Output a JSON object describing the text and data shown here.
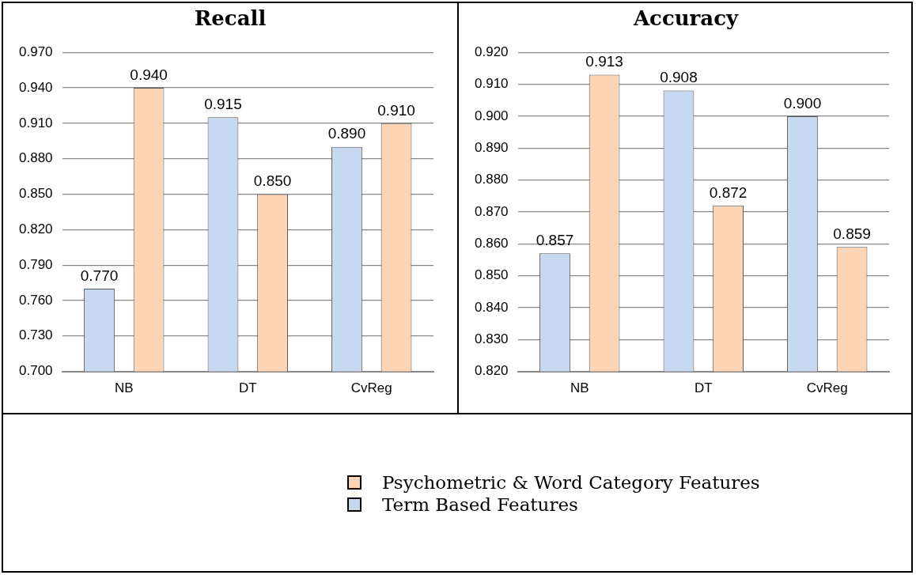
{
  "chart_data": [
    {
      "type": "bar",
      "title": "Recall",
      "categories": [
        "NB",
        "DT",
        "CvReg"
      ],
      "series": [
        {
          "name": "Term Based Features",
          "color": "#c6d9f0",
          "values": [
            0.77,
            0.915,
            0.89
          ],
          "value_labels": [
            "0.770",
            "0.915",
            "0.890"
          ]
        },
        {
          "name": "Psychometric & Word Category Features",
          "color": "#fbd5b5",
          "values": [
            0.94,
            0.85,
            0.91
          ],
          "value_labels": [
            "0.940",
            "0.850",
            "0.910"
          ]
        }
      ],
      "ylim": [
        0.7,
        0.97
      ],
      "yticks": [
        {
          "value": 0.7,
          "label": "0.700"
        },
        {
          "value": 0.73,
          "label": "0.730"
        },
        {
          "value": 0.76,
          "label": "0.760"
        },
        {
          "value": 0.79,
          "label": "0.790"
        },
        {
          "value": 0.82,
          "label": "0.820"
        },
        {
          "value": 0.85,
          "label": "0.850"
        },
        {
          "value": 0.88,
          "label": "0.880"
        },
        {
          "value": 0.91,
          "label": "0.910"
        },
        {
          "value": 0.94,
          "label": "0.940"
        },
        {
          "value": 0.97,
          "label": "0.970"
        }
      ],
      "grid": "y",
      "legend": "bottom"
    },
    {
      "type": "bar",
      "title": "Accuracy",
      "categories": [
        "NB",
        "DT",
        "CvReg"
      ],
      "series": [
        {
          "color": "#c6d9f0",
          "values": [
            0.857,
            0.908,
            0.9
          ],
          "value_labels": [
            "0.857",
            "0.908",
            "0.900"
          ]
        },
        {
          "color": "#fbd5b5",
          "values": [
            0.913,
            0.872,
            0.859
          ],
          "value_labels": [
            "0.913",
            "0.872",
            "0.859"
          ]
        }
      ],
      "ylim": [
        0.82,
        0.92
      ],
      "yticks": [
        {
          "value": 0.82,
          "label": "0.820"
        },
        {
          "value": 0.83,
          "label": "0.830"
        },
        {
          "value": 0.84,
          "label": "0.840"
        },
        {
          "value": 0.85,
          "label": "0.850"
        },
        {
          "value": 0.86,
          "label": "0.860"
        },
        {
          "value": 0.87,
          "label": "0.870"
        },
        {
          "value": 0.88,
          "label": "0.880"
        },
        {
          "value": 0.89,
          "label": "0.890"
        },
        {
          "value": 0.9,
          "label": "0.900"
        },
        {
          "value": 0.91,
          "label": "0.910"
        },
        {
          "value": 0.92,
          "label": "0.920"
        }
      ],
      "grid": "y"
    }
  ]
}
